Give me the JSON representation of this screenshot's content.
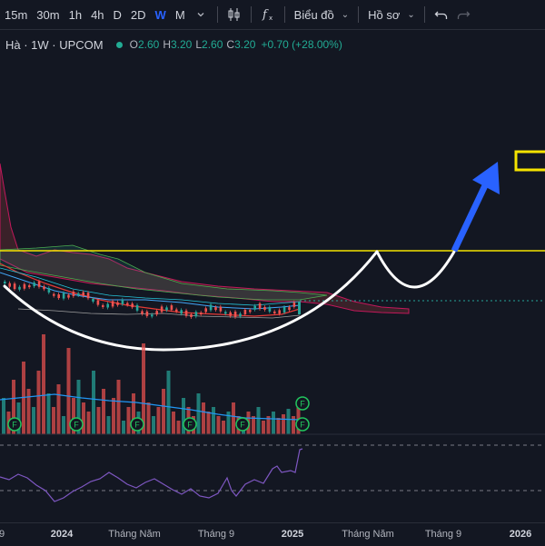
{
  "toolbar": {
    "timeframes": [
      "15m",
      "30m",
      "1h",
      "4h",
      "D",
      "2D",
      "W",
      "M"
    ],
    "active_timeframe": "W",
    "chart_type_label": "Biểu đồ",
    "profile_label": "Hồ sơ",
    "icons": [
      "chevron-down-icon",
      "candlestick-icon",
      "fx-icon",
      "undo-icon",
      "redo-icon"
    ]
  },
  "legend": {
    "symbol": "Hà · 1W · UPCOM",
    "open_key": "O",
    "open": "2.60",
    "high_key": "H",
    "high": "3.20",
    "low_key": "L",
    "low": "2.60",
    "close_key": "C",
    "close": "3.20",
    "change": "+0.70 (+28.00%)"
  },
  "x_axis": {
    "labels": [
      "9",
      "2024",
      "Tháng Năm",
      "Tháng 9",
      "2025",
      "Tháng Năm",
      "Tháng 9",
      "2026"
    ],
    "bold": [
      "2024",
      "2025",
      "2026"
    ]
  },
  "markers": {
    "label": "F"
  },
  "colors": {
    "background": "#131722",
    "up": "#26a69a",
    "down": "#ef5350",
    "resistance": "#f5e300",
    "arrow": "#2962ff",
    "rsi": "#7e57c2"
  }
}
